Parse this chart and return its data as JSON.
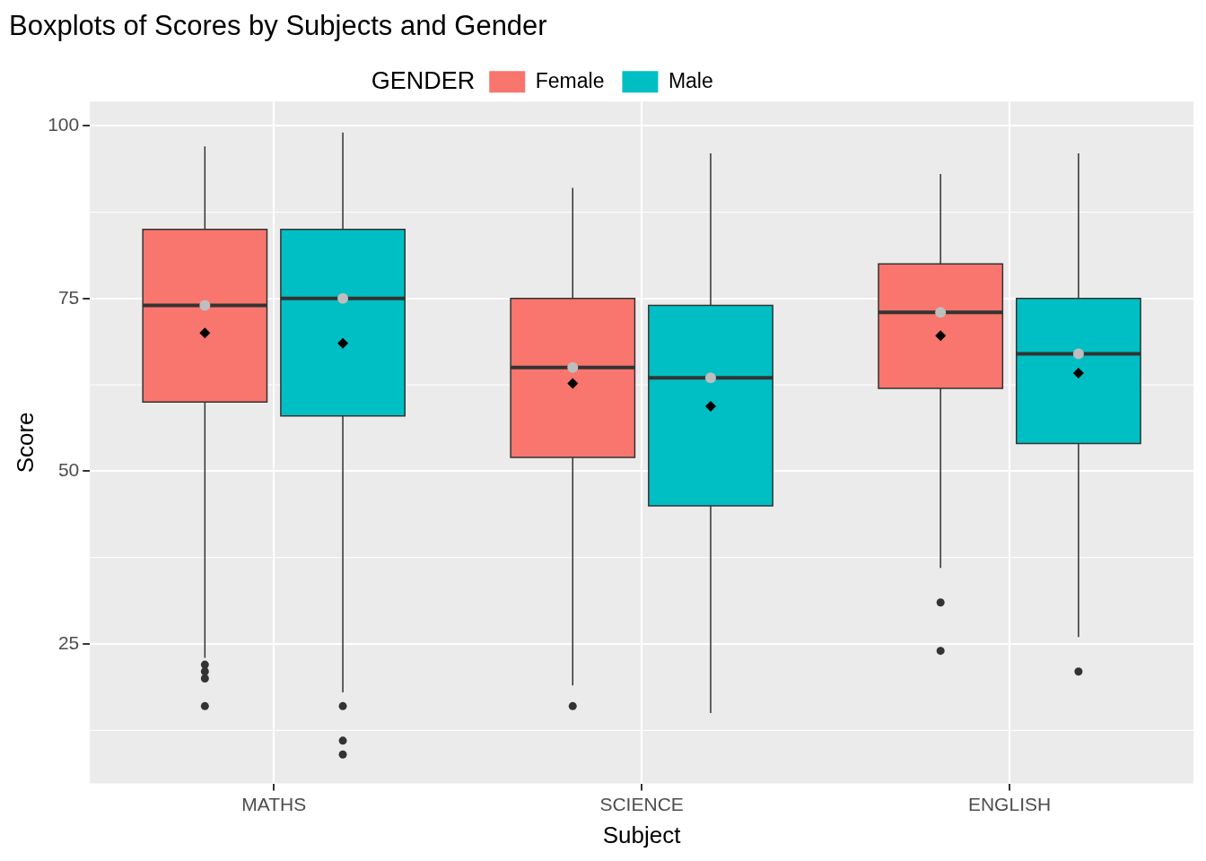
{
  "chart_data": {
    "type": "box",
    "title": "Boxplots of Scores by Subjects and Gender",
    "xlabel": "Subject",
    "ylabel": "Score",
    "legend_title": "GENDER",
    "legend": "top",
    "categories": [
      "MATHS",
      "SCIENCE",
      "ENGLISH"
    ],
    "series": [
      {
        "name": "Female",
        "color": "#f8766d",
        "boxes": [
          {
            "low": 23,
            "q1": 60,
            "median": 74,
            "q3": 85,
            "high": 97,
            "mean": 70,
            "outliers": [
              22,
              21,
              20,
              16
            ]
          },
          {
            "low": 19,
            "q1": 52,
            "median": 65,
            "q3": 75,
            "high": 91,
            "mean": 62.7,
            "outliers": [
              16
            ]
          },
          {
            "low": 36,
            "q1": 62,
            "median": 73,
            "q3": 80,
            "high": 93,
            "mean": 69.6,
            "outliers": [
              31,
              24
            ]
          }
        ]
      },
      {
        "name": "Male",
        "color": "#00bfc4",
        "boxes": [
          {
            "low": 18,
            "q1": 58,
            "median": 75,
            "q3": 85,
            "high": 99,
            "mean": 68.5,
            "outliers": [
              16,
              11,
              9
            ]
          },
          {
            "low": 15,
            "q1": 45,
            "median": 63.5,
            "q3": 74,
            "high": 96,
            "mean": 59.4
          },
          {
            "low": 26,
            "q1": 54,
            "median": 67,
            "q3": 75,
            "high": 96,
            "mean": 64.2,
            "outliers": [
              21
            ]
          }
        ]
      },
      {
        "type": "scatter",
        "color": "#bebebe",
        "x": [
          "MATHS",
          "MATHS",
          "SCIENCE",
          "SCIENCE",
          "ENGLISH",
          "ENGLISH"
        ],
        "values": [
          74,
          75,
          65,
          63.5,
          73,
          67
        ]
      }
    ],
    "ylim": [
      4.8,
      103.5
    ],
    "yticks": [
      25,
      50,
      75,
      100
    ],
    "grid": true
  }
}
